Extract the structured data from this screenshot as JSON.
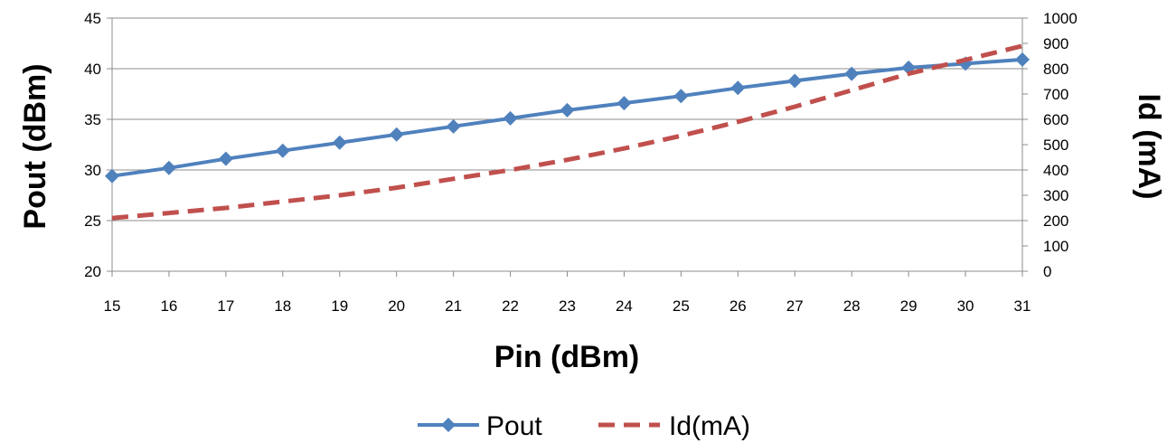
{
  "chart_data": {
    "type": "line",
    "xlabel": "Pin (dBm)",
    "ylabel": "Pout (dBm)",
    "y2label": "Id (mA)",
    "x": [
      15,
      16,
      17,
      18,
      19,
      20,
      21,
      22,
      23,
      24,
      25,
      26,
      27,
      28,
      29,
      30,
      31
    ],
    "xlim": [
      15,
      31
    ],
    "ylim": [
      20,
      45
    ],
    "y2lim": [
      0,
      1000
    ],
    "x_ticks": [
      "15",
      "16",
      "17",
      "18",
      "19",
      "20",
      "21",
      "22",
      "23",
      "24",
      "25",
      "26",
      "27",
      "28",
      "29",
      "30",
      "31"
    ],
    "y_ticks": [
      "20",
      "25",
      "30",
      "35",
      "40",
      "45"
    ],
    "y2_ticks": [
      "0",
      "100",
      "200",
      "300",
      "400",
      "500",
      "600",
      "700",
      "800",
      "900",
      "1000"
    ],
    "grid": true,
    "legend_position": "bottom",
    "series": [
      {
        "name": "Pout",
        "axis": "left",
        "color": "#4f81bd",
        "style": "solid",
        "marker": "diamond",
        "values": [
          29.4,
          30.2,
          31.1,
          31.9,
          32.7,
          33.5,
          34.3,
          35.1,
          35.9,
          36.6,
          37.3,
          38.1,
          38.8,
          39.5,
          40.1,
          40.5,
          40.9
        ]
      },
      {
        "name": "Id(mA)",
        "axis": "right",
        "color": "#c0504d",
        "style": "dashed",
        "marker": "none",
        "values": [
          210,
          230,
          250,
          275,
          300,
          330,
          365,
          400,
          440,
          485,
          535,
          590,
          650,
          715,
          780,
          835,
          890
        ]
      }
    ]
  }
}
